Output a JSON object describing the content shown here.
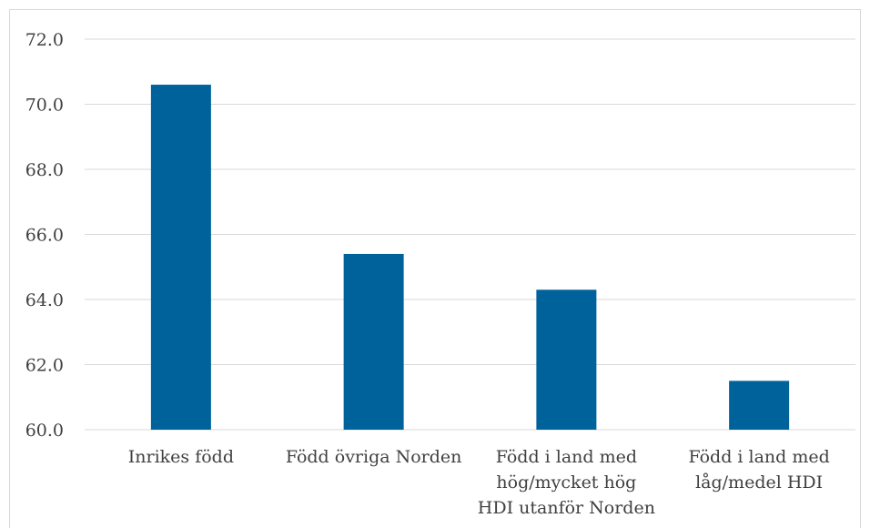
{
  "chart_data": {
    "type": "bar",
    "categories": [
      [
        "Inrikes född"
      ],
      [
        "Född övriga Norden"
      ],
      [
        "Född i land med",
        "hög/mycket hög",
        "HDI utanför Norden"
      ],
      [
        "Född i land med",
        "låg/medel HDI"
      ]
    ],
    "values": [
      70.6,
      65.4,
      64.3,
      61.5
    ],
    "ylim": [
      60,
      72
    ],
    "yticks": [
      "60.0",
      "62.0",
      "64.0",
      "66.0",
      "68.0",
      "70.0",
      "72.0"
    ],
    "grid": true,
    "bar_color": "#00629b",
    "grid_color": "#d9d9d9"
  }
}
